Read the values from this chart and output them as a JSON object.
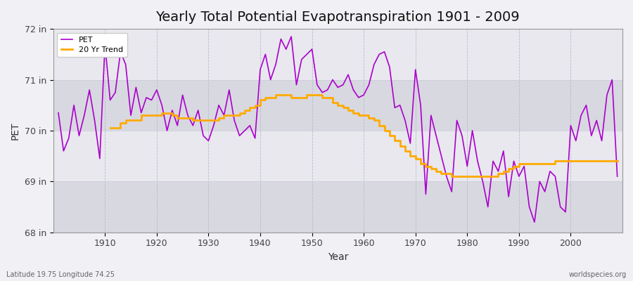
{
  "title": "Yearly Total Potential Evapotranspiration 1901 - 2009",
  "xlabel": "Year",
  "ylabel": "PET",
  "years": [
    1901,
    1902,
    1903,
    1904,
    1905,
    1906,
    1907,
    1908,
    1909,
    1910,
    1911,
    1912,
    1913,
    1914,
    1915,
    1916,
    1917,
    1918,
    1919,
    1920,
    1921,
    1922,
    1923,
    1924,
    1925,
    1926,
    1927,
    1928,
    1929,
    1930,
    1931,
    1932,
    1933,
    1934,
    1935,
    1936,
    1937,
    1938,
    1939,
    1940,
    1941,
    1942,
    1943,
    1944,
    1945,
    1946,
    1947,
    1948,
    1949,
    1950,
    1951,
    1952,
    1953,
    1954,
    1955,
    1956,
    1957,
    1958,
    1959,
    1960,
    1961,
    1962,
    1963,
    1964,
    1965,
    1966,
    1967,
    1968,
    1969,
    1970,
    1971,
    1972,
    1973,
    1974,
    1975,
    1976,
    1977,
    1978,
    1979,
    1980,
    1981,
    1982,
    1983,
    1984,
    1985,
    1986,
    1987,
    1988,
    1989,
    1990,
    1991,
    1992,
    1993,
    1994,
    1995,
    1996,
    1997,
    1998,
    1999,
    2000,
    2001,
    2002,
    2003,
    2004,
    2005,
    2006,
    2007,
    2008,
    2009
  ],
  "pet": [
    70.35,
    69.6,
    69.85,
    70.5,
    69.9,
    70.3,
    70.8,
    70.2,
    69.45,
    71.7,
    70.6,
    70.75,
    71.55,
    71.3,
    70.3,
    70.85,
    70.35,
    70.65,
    70.6,
    70.8,
    70.5,
    70.0,
    70.4,
    70.1,
    70.7,
    70.3,
    70.1,
    70.4,
    69.9,
    69.8,
    70.1,
    70.5,
    70.3,
    70.8,
    70.2,
    69.9,
    70.0,
    70.1,
    69.85,
    71.2,
    71.5,
    71.0,
    71.3,
    71.8,
    71.6,
    71.85,
    70.9,
    71.4,
    71.5,
    71.6,
    70.9,
    70.75,
    70.8,
    71.0,
    70.85,
    70.9,
    71.1,
    70.8,
    70.65,
    70.7,
    70.9,
    71.3,
    71.5,
    71.55,
    71.25,
    70.45,
    70.5,
    70.2,
    69.75,
    71.2,
    70.5,
    68.75,
    70.3,
    69.9,
    69.5,
    69.1,
    68.8,
    70.2,
    69.9,
    69.3,
    70.0,
    69.4,
    69.0,
    68.5,
    69.4,
    69.2,
    69.6,
    68.7,
    69.4,
    69.1,
    69.3,
    68.5,
    68.2,
    69.0,
    68.8,
    69.2,
    69.1,
    68.5,
    68.4,
    70.1,
    69.8,
    70.3,
    70.5,
    69.9,
    70.2,
    69.8,
    70.7,
    71.0,
    69.1
  ],
  "trend_years": [
    1911,
    1912,
    1913,
    1914,
    1915,
    1916,
    1917,
    1918,
    1919,
    1920,
    1921,
    1922,
    1923,
    1924,
    1925,
    1926,
    1927,
    1928,
    1929,
    1930,
    1931,
    1932,
    1933,
    1934,
    1935,
    1936,
    1937,
    1938,
    1939,
    1940,
    1941,
    1942,
    1943,
    1944,
    1945,
    1946,
    1947,
    1948,
    1949,
    1950,
    1951,
    1952,
    1953,
    1954,
    1955,
    1956,
    1957,
    1958,
    1959,
    1960,
    1961,
    1962,
    1963,
    1964,
    1965,
    1966,
    1967,
    1968,
    1969,
    1970,
    1971,
    1972,
    1973,
    1974,
    1975,
    1976,
    1977,
    1978,
    1979,
    1980,
    1981,
    1982,
    1983,
    1984,
    1985,
    1986,
    1987,
    1988,
    1989,
    1990,
    1991,
    1992,
    1993,
    1994,
    1995,
    1996,
    1997,
    1998,
    1999,
    2000,
    2001,
    2002,
    2003,
    2004,
    2005,
    2006,
    2007,
    2008,
    2009
  ],
  "trend": [
    70.05,
    70.05,
    70.15,
    70.2,
    70.2,
    70.2,
    70.3,
    70.3,
    70.3,
    70.3,
    70.35,
    70.35,
    70.3,
    70.25,
    70.25,
    70.25,
    70.2,
    70.2,
    70.2,
    70.2,
    70.2,
    70.25,
    70.3,
    70.3,
    70.3,
    70.35,
    70.4,
    70.45,
    70.5,
    70.6,
    70.65,
    70.65,
    70.7,
    70.7,
    70.7,
    70.65,
    70.65,
    70.65,
    70.7,
    70.7,
    70.7,
    70.65,
    70.65,
    70.55,
    70.5,
    70.45,
    70.4,
    70.35,
    70.3,
    70.3,
    70.25,
    70.2,
    70.1,
    70.0,
    69.9,
    69.8,
    69.7,
    69.6,
    69.5,
    69.45,
    69.35,
    69.3,
    69.25,
    69.2,
    69.15,
    69.15,
    69.1,
    69.1,
    69.1,
    69.1,
    69.1,
    69.1,
    69.1,
    69.1,
    69.1,
    69.15,
    69.2,
    69.25,
    69.3,
    69.35,
    69.35,
    69.35,
    69.35,
    69.35,
    69.35,
    69.35,
    69.4,
    69.4,
    69.4,
    69.4,
    69.4,
    69.4,
    69.4,
    69.4,
    69.4,
    69.4,
    69.4,
    69.4,
    69.4
  ],
  "pet_color": "#aa00cc",
  "trend_color": "#ffaa00",
  "bg_color": "#f0f0f5",
  "plot_bg_color": "#f0f0f5",
  "band1_color": "#e8e8ee",
  "band2_color": "#d8d8e0",
  "ylim": [
    68.0,
    72.0
  ],
  "yticks": [
    68.0,
    69.0,
    70.0,
    71.0,
    72.0
  ],
  "ytick_labels": [
    "68 in",
    "69 in",
    "70 in",
    "71 in",
    "72 in"
  ],
  "xlim": [
    1900,
    2010
  ],
  "xticks": [
    1910,
    1920,
    1930,
    1940,
    1950,
    1960,
    1970,
    1980,
    1990,
    2000
  ],
  "footnote_left": "Latitude 19.75 Longitude 74.25",
  "footnote_right": "worldspecies.org",
  "title_fontsize": 14,
  "label_fontsize": 9,
  "tick_fontsize": 9
}
